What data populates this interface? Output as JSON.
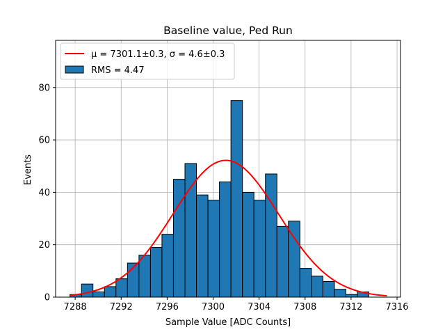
{
  "chart_data": {
    "type": "bar",
    "title": "Baseline value, Ped Run",
    "xlabel": "Sample Value [ADC Counts]",
    "ylabel": "Events",
    "xlim": [
      7286.3,
      7316.3
    ],
    "ylim": [
      0,
      98
    ],
    "grid": true,
    "xticks": [
      7288,
      7292,
      7296,
      7300,
      7304,
      7308,
      7312,
      7316
    ],
    "yticks": [
      0,
      20,
      40,
      60,
      80
    ],
    "legend_position": "top-left",
    "histogram": {
      "label": "RMS = 4.47",
      "color": "#1f77b4",
      "edgecolor": "#000000",
      "bins": [
        {
          "left": 7287.55,
          "right": 7288.55,
          "count": 1
        },
        {
          "left": 7288.55,
          "right": 7289.55,
          "count": 5
        },
        {
          "left": 7289.55,
          "right": 7290.55,
          "count": 2
        },
        {
          "left": 7290.55,
          "right": 7291.55,
          "count": 4
        },
        {
          "left": 7291.55,
          "right": 7292.55,
          "count": 7
        },
        {
          "left": 7292.55,
          "right": 7293.55,
          "count": 13
        },
        {
          "left": 7293.55,
          "right": 7294.55,
          "count": 16
        },
        {
          "left": 7294.55,
          "right": 7295.55,
          "count": 19
        },
        {
          "left": 7295.55,
          "right": 7296.55,
          "count": 24
        },
        {
          "left": 7296.55,
          "right": 7297.55,
          "count": 45
        },
        {
          "left": 7297.55,
          "right": 7298.55,
          "count": 51
        },
        {
          "left": 7298.55,
          "right": 7299.55,
          "count": 39
        },
        {
          "left": 7299.55,
          "right": 7300.55,
          "count": 37
        },
        {
          "left": 7300.55,
          "right": 7301.55,
          "count": 44
        },
        {
          "left": 7301.55,
          "right": 7302.55,
          "count": 75
        },
        {
          "left": 7302.55,
          "right": 7303.55,
          "count": 40
        },
        {
          "left": 7303.55,
          "right": 7304.55,
          "count": 37
        },
        {
          "left": 7304.55,
          "right": 7305.55,
          "count": 47
        },
        {
          "left": 7305.55,
          "right": 7306.55,
          "count": 27
        },
        {
          "left": 7306.55,
          "right": 7307.55,
          "count": 29
        },
        {
          "left": 7307.55,
          "right": 7308.55,
          "count": 11
        },
        {
          "left": 7308.55,
          "right": 7309.55,
          "count": 8
        },
        {
          "left": 7309.55,
          "right": 7310.55,
          "count": 6
        },
        {
          "left": 7310.55,
          "right": 7311.55,
          "count": 3
        },
        {
          "left": 7311.55,
          "right": 7312.55,
          "count": 1
        },
        {
          "left": 7312.55,
          "right": 7313.55,
          "count": 2
        }
      ]
    },
    "fit": {
      "type": "gaussian",
      "color": "#ff0000",
      "label_text": "μ = 7301.1±0.3, σ = 4.6±0.3",
      "mu": 7301.1,
      "sigma": 4.6,
      "amplitude": 52.2,
      "x_range": [
        7287.6,
        7315.1
      ]
    }
  }
}
